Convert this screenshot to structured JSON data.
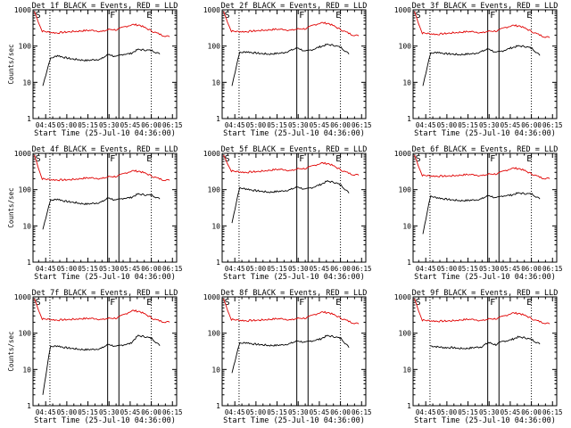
{
  "colors": {
    "events": "#000000",
    "lld": "#e00000",
    "axes": "#000000"
  },
  "chart_data": [
    {
      "type": "line",
      "title": "Det 1f BLACK = Events, RED = LLD",
      "xlabel": "Start Time (25-Jul-10 04:36:00)",
      "ylabel": "Counts/sec",
      "yscale": "log",
      "ylim": [
        1,
        1000
      ],
      "x_tick_labels": [
        "04:45",
        "05:00",
        "05:15",
        "05:30",
        "05:45",
        "06:00",
        "06:15"
      ],
      "y_tick_labels": [
        "1",
        "10",
        "100",
        "1000"
      ],
      "markers": [
        "S",
        "F",
        "E"
      ],
      "series": [
        {
          "name": "Events",
          "color": "#000000",
          "start": "04:43",
          "end": "06:06",
          "values": [
            8,
            45,
            55,
            48,
            44,
            42,
            40,
            42,
            44,
            60,
            50,
            60,
            62,
            80,
            78,
            75,
            60
          ]
        },
        {
          "name": "LLD",
          "color": "#e00000",
          "start": "04:37",
          "end": "06:13",
          "values": [
            900,
            260,
            240,
            230,
            240,
            250,
            260,
            270,
            270,
            250,
            290,
            280,
            340,
            390,
            380,
            300,
            240,
            200,
            180
          ]
        }
      ]
    },
    {
      "type": "line",
      "title": "Det 2f BLACK = Events, RED = LLD",
      "xlabel": "Start Time (25-Jul-10 04:36:00)",
      "ylabel": "",
      "yscale": "log",
      "ylim": [
        1,
        1000
      ],
      "x_tick_labels": [
        "04:45",
        "05:00",
        "05:15",
        "05:30",
        "05:45",
        "06:00",
        "06:15"
      ],
      "y_tick_labels": [
        "1",
        "10",
        "100",
        "1000"
      ],
      "markers": [
        "S",
        "F",
        "E"
      ],
      "series": [
        {
          "name": "Events",
          "color": "#000000",
          "start": "04:43",
          "end": "06:06",
          "values": [
            8,
            65,
            70,
            65,
            62,
            60,
            62,
            65,
            75,
            90,
            70,
            80,
            95,
            110,
            105,
            90,
            60
          ]
        },
        {
          "name": "LLD",
          "color": "#e00000",
          "start": "04:37",
          "end": "06:13",
          "values": [
            900,
            260,
            250,
            250,
            260,
            270,
            280,
            290,
            290,
            270,
            300,
            300,
            380,
            440,
            420,
            330,
            260,
            210,
            190
          ]
        }
      ]
    },
    {
      "type": "line",
      "title": "Det 3f BLACK = Events, RED = LLD",
      "xlabel": "Start Time (25-Jul-10 04:36:00)",
      "ylabel": "",
      "yscale": "log",
      "ylim": [
        1,
        1000
      ],
      "x_tick_labels": [
        "04:45",
        "05:00",
        "05:15",
        "05:30",
        "05:45",
        "06:00",
        "06:15"
      ],
      "y_tick_labels": [
        "1",
        "10",
        "100",
        "1000"
      ],
      "markers": [
        "S",
        "F",
        "E"
      ],
      "series": [
        {
          "name": "Events",
          "color": "#000000",
          "start": "04:43",
          "end": "06:06",
          "values": [
            8,
            62,
            68,
            62,
            60,
            58,
            60,
            62,
            70,
            85,
            65,
            75,
            88,
            100,
            98,
            85,
            55
          ]
        },
        {
          "name": "LLD",
          "color": "#e00000",
          "start": "04:37",
          "end": "06:13",
          "values": [
            900,
            230,
            220,
            210,
            220,
            230,
            240,
            250,
            250,
            230,
            260,
            260,
            320,
            370,
            360,
            290,
            230,
            190,
            170
          ]
        }
      ]
    },
    {
      "type": "line",
      "title": "Det 4f BLACK = Events, RED = LLD",
      "xlabel": "Start Time (25-Jul-10 04:36:00)",
      "ylabel": "Counts/sec",
      "yscale": "log",
      "ylim": [
        1,
        1000
      ],
      "x_tick_labels": [
        "04:45",
        "05:00",
        "05:15",
        "05:30",
        "05:45",
        "06:00",
        "06:15"
      ],
      "y_tick_labels": [
        "1",
        "10",
        "100",
        "1000"
      ],
      "markers": [
        "S",
        "F",
        "E"
      ],
      "series": [
        {
          "name": "Events",
          "color": "#000000",
          "start": "04:43",
          "end": "06:06",
          "values": [
            8,
            50,
            55,
            48,
            45,
            42,
            40,
            42,
            45,
            60,
            50,
            58,
            60,
            75,
            72,
            70,
            55
          ]
        },
        {
          "name": "LLD",
          "color": "#e00000",
          "start": "04:37",
          "end": "06:13",
          "values": [
            900,
            200,
            190,
            185,
            185,
            190,
            200,
            210,
            210,
            200,
            230,
            230,
            280,
            330,
            320,
            270,
            220,
            190,
            180
          ]
        }
      ]
    },
    {
      "type": "line",
      "title": "Det 5f BLACK = Events, RED = LLD",
      "xlabel": "Start Time (25-Jul-10 04:36:00)",
      "ylabel": "",
      "yscale": "log",
      "ylim": [
        1,
        1000
      ],
      "x_tick_labels": [
        "04:45",
        "05:00",
        "05:15",
        "05:30",
        "05:45",
        "06:00",
        "06:15"
      ],
      "y_tick_labels": [
        "1",
        "10",
        "100",
        "1000"
      ],
      "markers": [
        "S",
        "F",
        "E"
      ],
      "series": [
        {
          "name": "Events",
          "color": "#000000",
          "start": "04:43",
          "end": "06:06",
          "values": [
            12,
            110,
            105,
            95,
            90,
            85,
            88,
            92,
            100,
            120,
            100,
            115,
            135,
            170,
            160,
            130,
            80
          ]
        },
        {
          "name": "LLD",
          "color": "#e00000",
          "start": "04:37",
          "end": "06:13",
          "values": [
            900,
            330,
            310,
            300,
            310,
            320,
            340,
            360,
            360,
            330,
            380,
            380,
            460,
            540,
            520,
            410,
            320,
            270,
            250
          ]
        }
      ]
    },
    {
      "type": "line",
      "title": "Det 6f BLACK = Events, RED = LLD",
      "xlabel": "Start Time (25-Jul-10 04:36:00)",
      "ylabel": "",
      "yscale": "log",
      "ylim": [
        1,
        1000
      ],
      "x_tick_labels": [
        "04:45",
        "05:00",
        "05:15",
        "05:30",
        "05:45",
        "06:00",
        "06:15"
      ],
      "y_tick_labels": [
        "1",
        "10",
        "100",
        "1000"
      ],
      "markers": [
        "S",
        "F",
        "E"
      ],
      "series": [
        {
          "name": "Events",
          "color": "#000000",
          "start": "04:43",
          "end": "06:06",
          "values": [
            6,
            65,
            60,
            55,
            52,
            50,
            50,
            52,
            55,
            70,
            58,
            68,
            70,
            80,
            78,
            75,
            55
          ]
        },
        {
          "name": "LLD",
          "color": "#e00000",
          "start": "04:37",
          "end": "06:13",
          "values": [
            900,
            250,
            240,
            235,
            235,
            240,
            250,
            260,
            260,
            240,
            270,
            270,
            330,
            390,
            380,
            310,
            250,
            210,
            200
          ]
        }
      ]
    },
    {
      "type": "line",
      "title": "Det 7f BLACK = Events, RED = LLD",
      "xlabel": "Start Time (25-Jul-10 04:36:00)",
      "ylabel": "Counts/sec",
      "yscale": "log",
      "ylim": [
        1,
        1000
      ],
      "x_tick_labels": [
        "04:45",
        "05:00",
        "05:15",
        "05:30",
        "05:45",
        "06:00",
        "06:15"
      ],
      "y_tick_labels": [
        "1",
        "10",
        "100",
        "1000"
      ],
      "markers": [
        "S",
        "F",
        "E"
      ],
      "series": [
        {
          "name": "Events",
          "color": "#000000",
          "start": "04:43",
          "end": "06:06",
          "values": [
            2,
            42,
            45,
            40,
            38,
            36,
            35,
            36,
            38,
            50,
            42,
            48,
            52,
            85,
            80,
            70,
            45
          ]
        },
        {
          "name": "LLD",
          "color": "#e00000",
          "start": "04:37",
          "end": "06:13",
          "values": [
            900,
            250,
            240,
            230,
            235,
            240,
            250,
            255,
            255,
            235,
            260,
            260,
            330,
            420,
            400,
            310,
            240,
            210,
            200
          ]
        }
      ]
    },
    {
      "type": "line",
      "title": "Det 8f BLACK = Events, RED = LLD",
      "xlabel": "Start Time (25-Jul-10 04:36:00)",
      "ylabel": "",
      "yscale": "log",
      "ylim": [
        1,
        1000
      ],
      "x_tick_labels": [
        "04:45",
        "05:00",
        "05:15",
        "05:30",
        "05:45",
        "06:00",
        "06:15"
      ],
      "y_tick_labels": [
        "1",
        "10",
        "100",
        "1000"
      ],
      "markers": [
        "S",
        "F",
        "E"
      ],
      "series": [
        {
          "name": "Events",
          "color": "#000000",
          "start": "04:43",
          "end": "06:06",
          "values": [
            8,
            52,
            55,
            50,
            48,
            46,
            46,
            48,
            52,
            62,
            55,
            62,
            68,
            85,
            80,
            70,
            40
          ]
        },
        {
          "name": "LLD",
          "color": "#e00000",
          "start": "04:37",
          "end": "06:13",
          "values": [
            900,
            240,
            230,
            220,
            225,
            230,
            240,
            250,
            250,
            230,
            260,
            260,
            320,
            380,
            370,
            300,
            240,
            200,
            180
          ]
        }
      ]
    },
    {
      "type": "line",
      "title": "Det 9f BLACK = Events, RED = LLD",
      "xlabel": "Start Time (25-Jul-10 04:36:00)",
      "ylabel": "",
      "yscale": "log",
      "ylim": [
        1,
        1000
      ],
      "x_tick_labels": [
        "04:45",
        "05:00",
        "05:15",
        "05:30",
        "05:45",
        "06:00",
        "06:15"
      ],
      "y_tick_labels": [
        "1",
        "10",
        "100",
        "1000"
      ],
      "markers": [
        "S",
        "F",
        "E"
      ],
      "series": [
        {
          "name": "Events",
          "color": "#000000",
          "start": "04:48",
          "end": "06:06",
          "values": [
            45,
            42,
            40,
            40,
            38,
            38,
            40,
            42,
            55,
            48,
            60,
            65,
            78,
            75,
            65,
            50
          ]
        },
        {
          "name": "LLD",
          "color": "#e00000",
          "start": "04:37",
          "end": "06:13",
          "values": [
            900,
            230,
            220,
            215,
            215,
            220,
            230,
            240,
            240,
            220,
            250,
            250,
            300,
            360,
            350,
            290,
            230,
            200,
            180
          ]
        }
      ]
    }
  ]
}
